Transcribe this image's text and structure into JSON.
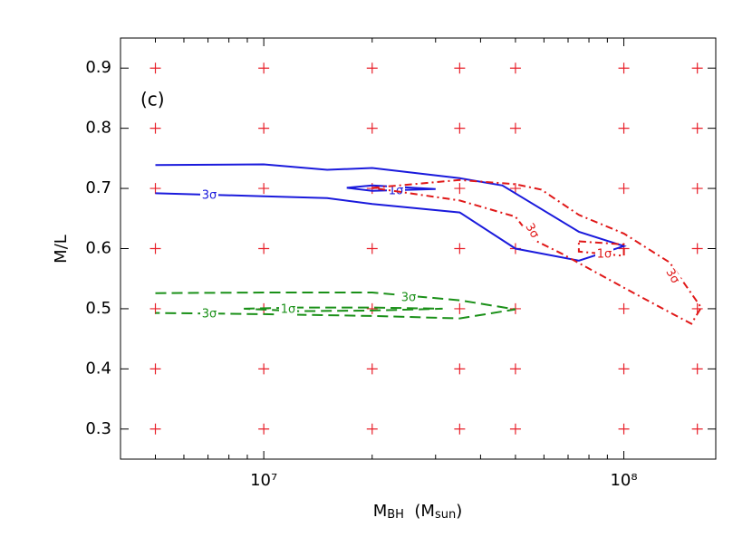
{
  "chart_data": {
    "type": "contour",
    "panel_label": "(c)",
    "xlabel": [
      {
        "text": "M"
      },
      {
        "text": "BH",
        "sub": true
      },
      {
        "text": "  (M"
      },
      {
        "text": "sun",
        "sub": true
      },
      {
        "text": ")"
      }
    ],
    "ylabel": "M/L",
    "xscale": "log",
    "xlim": [
      4000000,
      180000000
    ],
    "ylim": [
      0.25,
      0.95
    ],
    "xticks": [
      {
        "value": 10000000,
        "label": "10⁷"
      },
      {
        "value": 100000000,
        "label": "10⁸"
      }
    ],
    "xminorticks": [
      5000000,
      6000000,
      7000000,
      8000000,
      9000000,
      20000000,
      30000000,
      40000000,
      50000000,
      60000000,
      70000000,
      80000000,
      90000000
    ],
    "yticks": [
      0.3,
      0.4,
      0.5,
      0.6,
      0.7,
      0.8,
      0.9
    ],
    "grid_points": {
      "color": "#e8202a",
      "x": [
        5000000,
        10000000,
        20000000,
        35000000,
        50000000,
        100000000,
        160000000
      ],
      "y": [
        0.3,
        0.4,
        0.5,
        0.6,
        0.7,
        0.8,
        0.9
      ]
    },
    "contours": [
      {
        "label": "3σ",
        "color": "#1a1adc",
        "dash": "solid",
        "x": [
          5000000,
          10000000,
          15000000,
          20000000,
          35000000,
          46000000,
          75000000,
          100000000,
          75000000,
          50000000,
          35000000,
          20000000,
          15000000,
          10000000,
          5000000
        ],
        "y": [
          0.739,
          0.74,
          0.731,
          0.734,
          0.717,
          0.705,
          0.628,
          0.604,
          0.58,
          0.6,
          0.66,
          0.674,
          0.684,
          0.687,
          0.692
        ]
      },
      {
        "label": "1σ",
        "color": "#1a1adc",
        "dash": "solid",
        "x": [
          17000000,
          20000000,
          26000000,
          30000000,
          20000000,
          17000000
        ],
        "y": [
          0.701,
          0.705,
          0.701,
          0.699,
          0.696,
          0.701
        ]
      },
      {
        "label": "3σ",
        "color": "#e01818",
        "dash": "dashdot",
        "x": [
          20000000,
          35000000,
          50000000,
          59000000,
          75000000,
          100000000,
          134000000,
          164000000,
          154000000,
          134000000,
          100000000,
          67000000,
          56000000,
          50000000,
          35000000,
          20000000
        ],
        "y": [
          0.701,
          0.714,
          0.707,
          0.698,
          0.656,
          0.625,
          0.577,
          0.502,
          0.475,
          0.494,
          0.535,
          0.592,
          0.615,
          0.653,
          0.68,
          0.701
        ]
      },
      {
        "label": "1σ",
        "color": "#e01818",
        "dash": "dashdot",
        "x": [
          75000000,
          100000000,
          100000000,
          75000000,
          75000000
        ],
        "y": [
          0.612,
          0.607,
          0.588,
          0.595,
          0.612
        ]
      },
      {
        "label": "3σ",
        "color": "#1a9018",
        "dash": "dashed",
        "x": [
          5000000,
          10000000,
          20000000,
          35000000,
          50000000,
          35000000,
          20000000,
          10000000,
          5000000
        ],
        "y": [
          0.526,
          0.527,
          0.527,
          0.514,
          0.499,
          0.484,
          0.488,
          0.491,
          0.493
        ]
      },
      {
        "label": "1σ",
        "color": "#1a9018",
        "dash": "dashed",
        "x": [
          8800000,
          12500000,
          20000000,
          31400000,
          20000000,
          12500000,
          8800000
        ],
        "y": [
          0.5,
          0.502,
          0.502,
          0.5,
          0.497,
          0.496,
          0.5
        ]
      }
    ]
  }
}
